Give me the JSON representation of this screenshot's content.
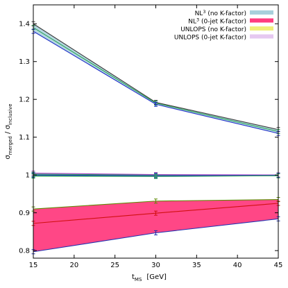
{
  "chart_data": {
    "type": "line",
    "xlabel_main": "t",
    "xlabel_sub": "MS",
    "xlabel_unit": "[GeV]",
    "ylabel_sigma1": "σ",
    "ylabel_sub1": "merged",
    "ylabel_sep": " / ",
    "ylabel_sigma2": "σ",
    "ylabel_sub2": "inclusive",
    "xlim": [
      15,
      45
    ],
    "ylim": [
      0.78,
      1.45
    ],
    "xticks": [
      15,
      20,
      25,
      30,
      35,
      40,
      45
    ],
    "xtick_labels": [
      "15",
      "20",
      "25",
      "30",
      "35",
      "40",
      "45"
    ],
    "yticks": [
      0.8,
      0.9,
      1.0,
      1.1,
      1.2,
      1.3,
      1.4
    ],
    "ytick_labels": [
      "0.8",
      "0.9",
      "1",
      "1.1",
      "1.2",
      "1.3",
      "1.4"
    ],
    "legend_position": "top-right",
    "x": [
      15,
      30,
      45
    ],
    "bands": [
      {
        "legend_main": "NL",
        "legend_sup": "3",
        "legend_note": "(no K-factor)",
        "color": "#a8d0dc",
        "upper": {
          "color": "#3a3a3a",
          "values": [
            1.4,
            1.192,
            1.12
          ]
        },
        "center": {
          "color": "#2fa55a",
          "values": [
            1.39,
            1.19,
            1.115
          ]
        },
        "lower": {
          "color": "#1e2ec8",
          "values": [
            1.38,
            1.187,
            1.11
          ]
        }
      },
      {
        "legend_main": "NL",
        "legend_sup": "3",
        "legend_note": "(0-jet K-factor)",
        "color": "#ff3d7f",
        "upper": {
          "color": "#5a8a00",
          "values": [
            0.91,
            0.931,
            0.935
          ]
        },
        "center": {
          "color": "#d01010",
          "values": [
            0.872,
            0.899,
            0.925
          ]
        },
        "lower": {
          "color": "#2030b0",
          "values": [
            0.797,
            0.847,
            0.884
          ]
        }
      },
      {
        "legend_main": "UNLOPS",
        "legend_sup": "",
        "legend_note": "(no K-factor)",
        "color": "#f0f07a",
        "upper": {
          "color": "#2fa55a",
          "values": [
            1.002,
            1.0,
            1.0
          ]
        },
        "center": {
          "color": "#2fa55a",
          "values": [
            1.0,
            0.999,
            0.999
          ]
        },
        "lower": {
          "color": "#2fa55a",
          "values": [
            0.998,
            0.998,
            0.998
          ]
        }
      },
      {
        "legend_main": "UNLOPS",
        "legend_sup": "",
        "legend_note": "(0-jet K-factor)",
        "color": "#e6c8f0",
        "upper": {
          "color": "#a040c0",
          "values": [
            1.005,
            1.001,
            1.0
          ]
        },
        "center": {
          "color": "#1e2ec8",
          "values": [
            1.0,
            0.998,
            0.999
          ]
        },
        "lower": {
          "color": "#2fa55a",
          "values": [
            0.997,
            0.996,
            0.998
          ]
        }
      }
    ]
  }
}
